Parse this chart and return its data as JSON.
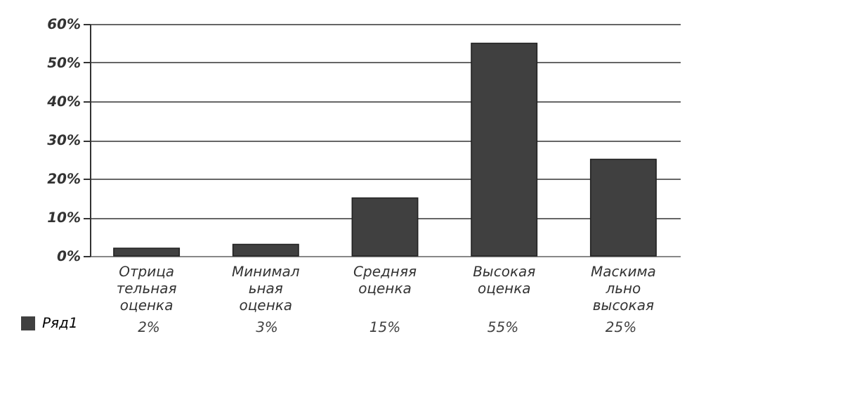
{
  "chart_data": {
    "type": "bar",
    "categories": [
      "Отрица тельная оценка",
      "Минимал ьная оценка",
      "Средняя оценка",
      "Высокая оценка",
      "Маскима льно высокая"
    ],
    "series": [
      {
        "name": "Ряд1",
        "color": "#404040",
        "values": [
          2,
          3,
          15,
          55,
          25
        ],
        "value_labels": [
          "2%",
          "3%",
          "15%",
          "55%",
          "25%"
        ]
      }
    ],
    "ylim": [
      0,
      60
    ],
    "yticks": [
      {
        "value": 0,
        "label": "0%"
      },
      {
        "value": 10,
        "label": "10%"
      },
      {
        "value": 20,
        "label": "20%"
      },
      {
        "value": 30,
        "label": "30%"
      },
      {
        "value": 40,
        "label": "40%"
      },
      {
        "value": 50,
        "label": "50%"
      },
      {
        "value": 60,
        "label": "60%"
      }
    ],
    "grid": "y",
    "legend": "bottom left"
  }
}
